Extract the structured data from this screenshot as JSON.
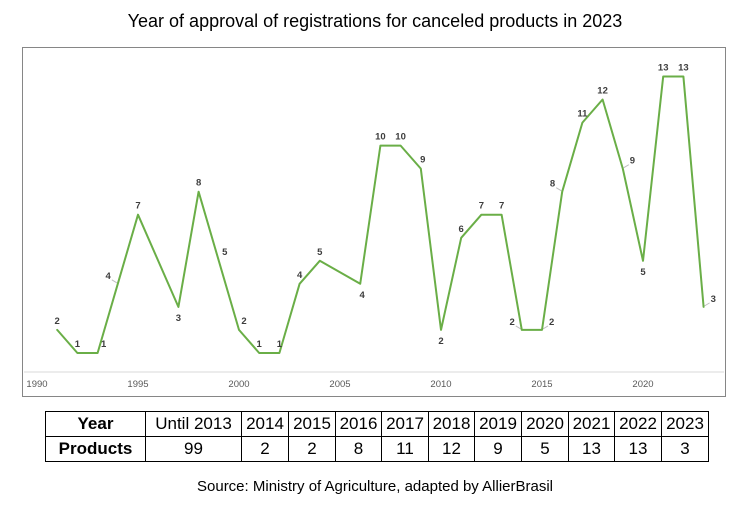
{
  "page": {
    "title": "Year of approval of registrations for canceled products in 2023",
    "source": "Source: Ministry of Agriculture, adapted by AllierBrasil"
  },
  "chart_data": {
    "type": "line",
    "title": "Year of approval of registrations for canceled products in 2023",
    "series_name": "Products",
    "x": [
      1991,
      1992,
      1993,
      1994,
      1995,
      1997,
      1998,
      1999,
      2000,
      2001,
      2002,
      2003,
      2004,
      2006,
      2007,
      2008,
      2009,
      2010,
      2011,
      2012,
      2013,
      2014,
      2015,
      2016,
      2017,
      2018,
      2019,
      2020,
      2021,
      2022,
      2023
    ],
    "values": [
      2,
      1,
      1,
      4,
      7,
      3,
      8,
      5,
      2,
      1,
      1,
      4,
      5,
      4,
      10,
      10,
      9,
      2,
      6,
      7,
      7,
      2,
      2,
      8,
      11,
      12,
      9,
      5,
      13,
      13,
      3
    ],
    "label_placements": [
      "a",
      "a",
      "a:6",
      "ll",
      "a",
      "b",
      "a",
      "a:6",
      "a:5",
      "a",
      "a",
      "a",
      "a",
      "b:2",
      "a",
      "a",
      "a:2",
      "b",
      "a",
      "a",
      "a",
      "ll",
      "rl",
      "ll",
      "a",
      "a",
      "rl",
      "b",
      "a",
      "a",
      "rl"
    ],
    "x_ticks": [
      "1990",
      "1995",
      "2000",
      "2005",
      "2010",
      "2015",
      "2020"
    ],
    "xlim": [
      1989.3,
      2024.8
    ],
    "ylim": [
      0,
      14.2
    ],
    "grid": false,
    "legend": "none",
    "line_color": "#6AAE47",
    "label_color": "#3D3D3D",
    "axis_color": "#D9D9D9",
    "tick_color": "#595959",
    "leader_color": "#BFBFBF"
  },
  "table": {
    "year_row": [
      "Year",
      "Until 2013",
      "2014",
      "2015",
      "2016",
      "2017",
      "2018",
      "2019",
      "2020",
      "2021",
      "2022",
      "2023"
    ],
    "products_row": [
      "Products",
      "99",
      "2",
      "2",
      "8",
      "11",
      "12",
      "9",
      "5",
      "13",
      "13",
      "3"
    ]
  }
}
